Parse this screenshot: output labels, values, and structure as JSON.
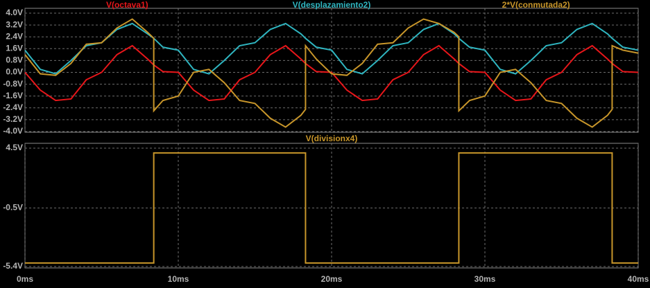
{
  "chart_data": [
    {
      "type": "line",
      "x": [
        0,
        1,
        2,
        3,
        4,
        5,
        6,
        7,
        8,
        8.4,
        8.4,
        9,
        10,
        11,
        12,
        13,
        14,
        15,
        16,
        17,
        18,
        18.3,
        18.3,
        19,
        20,
        21,
        22,
        23,
        24,
        25,
        26,
        27,
        28,
        28.3,
        28.3,
        29,
        30,
        31,
        32,
        33,
        34,
        35,
        36,
        37,
        38,
        38.3,
        38.3,
        39,
        40
      ],
      "xlim": [
        0,
        40
      ],
      "ylim": [
        -4.0,
        4.0
      ],
      "yticks": [
        {
          "value": 4.0,
          "label": "4.0V"
        },
        {
          "value": 3.2,
          "label": "3.2V"
        },
        {
          "value": 2.4,
          "label": "2.4V"
        },
        {
          "value": 1.6,
          "label": "1.6V"
        },
        {
          "value": 0.8,
          "label": "0.8V"
        },
        {
          "value": 0.0,
          "label": "0.0V"
        },
        {
          "value": -0.8,
          "label": "-0.8V"
        },
        {
          "value": -1.6,
          "label": "-1.6V"
        },
        {
          "value": -2.4,
          "label": "-2.4V"
        },
        {
          "value": -3.2,
          "label": "-3.2V"
        },
        {
          "value": -4.0,
          "label": "-4.0V"
        }
      ],
      "grid": true,
      "series": [
        {
          "name": "V(octava1)",
          "color": "#e8161a",
          "values": [
            0,
            -1.2,
            -1.9,
            -1.8,
            -0.5,
            0,
            1.2,
            1.8,
            0.9,
            0.5,
            0.5,
            0.05,
            0,
            -1.2,
            -1.9,
            -1.8,
            -0.5,
            0,
            1.2,
            1.8,
            0.9,
            0.6,
            0.6,
            0.05,
            0,
            -1.2,
            -1.9,
            -1.8,
            -0.5,
            0,
            1.2,
            1.8,
            0.9,
            0.6,
            0.6,
            0.05,
            0,
            -1.2,
            -1.9,
            -1.8,
            -0.5,
            0,
            1.2,
            1.8,
            0.9,
            0.6,
            0.6,
            0.05,
            0
          ]
        },
        {
          "name": "V(desplazamiento2)",
          "color": "#2fb5c0",
          "values": [
            1.5,
            0.2,
            -0.1,
            0.8,
            1.8,
            2.0,
            2.9,
            3.3,
            2.6,
            2.3,
            2.3,
            1.7,
            1.5,
            0.2,
            -0.1,
            0.8,
            1.8,
            2.0,
            2.9,
            3.3,
            2.6,
            2.3,
            2.3,
            1.7,
            1.5,
            0.2,
            -0.1,
            0.8,
            1.8,
            2.0,
            2.9,
            3.3,
            2.6,
            2.3,
            2.3,
            1.7,
            1.5,
            0.2,
            -0.1,
            0.8,
            1.8,
            2.0,
            2.9,
            3.3,
            2.6,
            2.3,
            2.3,
            1.7,
            1.5
          ]
        },
        {
          "name": "2*V(conmutada2)",
          "color": "#c8962a",
          "values": [
            1.2,
            -0.1,
            -0.2,
            0.6,
            1.9,
            2.0,
            3.0,
            3.6,
            2.7,
            2.3,
            -2.6,
            -1.9,
            -1.6,
            0.0,
            0.2,
            -0.7,
            -1.9,
            -2.1,
            -3.1,
            -3.7,
            -2.9,
            -2.5,
            1.8,
            0.9,
            -0.1,
            -0.2,
            0.6,
            1.9,
            2.0,
            3.0,
            3.6,
            3.3,
            2.7,
            2.4,
            -2.6,
            -1.9,
            -1.6,
            0.0,
            0.2,
            -0.7,
            -1.9,
            -2.1,
            -3.1,
            -3.7,
            -2.9,
            -2.5,
            1.8,
            1.5,
            1.3
          ]
        }
      ]
    },
    {
      "type": "line",
      "x": [
        0,
        8.4,
        8.4,
        18.3,
        18.3,
        28.3,
        28.3,
        38.3,
        38.3,
        40
      ],
      "xlim": [
        0,
        40
      ],
      "xticks": [
        {
          "value": 0,
          "label": "0ms"
        },
        {
          "value": 10,
          "label": "10ms"
        },
        {
          "value": 20,
          "label": "20ms"
        },
        {
          "value": 30,
          "label": "30ms"
        },
        {
          "value": 40,
          "label": "40ms"
        }
      ],
      "ylim": [
        -5.4,
        4.5
      ],
      "yticks": [
        {
          "value": 4.5,
          "label": "4.5V"
        },
        {
          "value": -0.5,
          "label": "-0.5V"
        },
        {
          "value": -5.4,
          "label": "-5.4V"
        }
      ],
      "grid": true,
      "series": [
        {
          "name": "V(divisionx4)",
          "color": "#c8962a",
          "values": [
            -5.1,
            -5.1,
            4.1,
            4.1,
            -5.1,
            -5.1,
            4.1,
            4.1,
            -5.1,
            -5.1
          ]
        }
      ]
    }
  ]
}
